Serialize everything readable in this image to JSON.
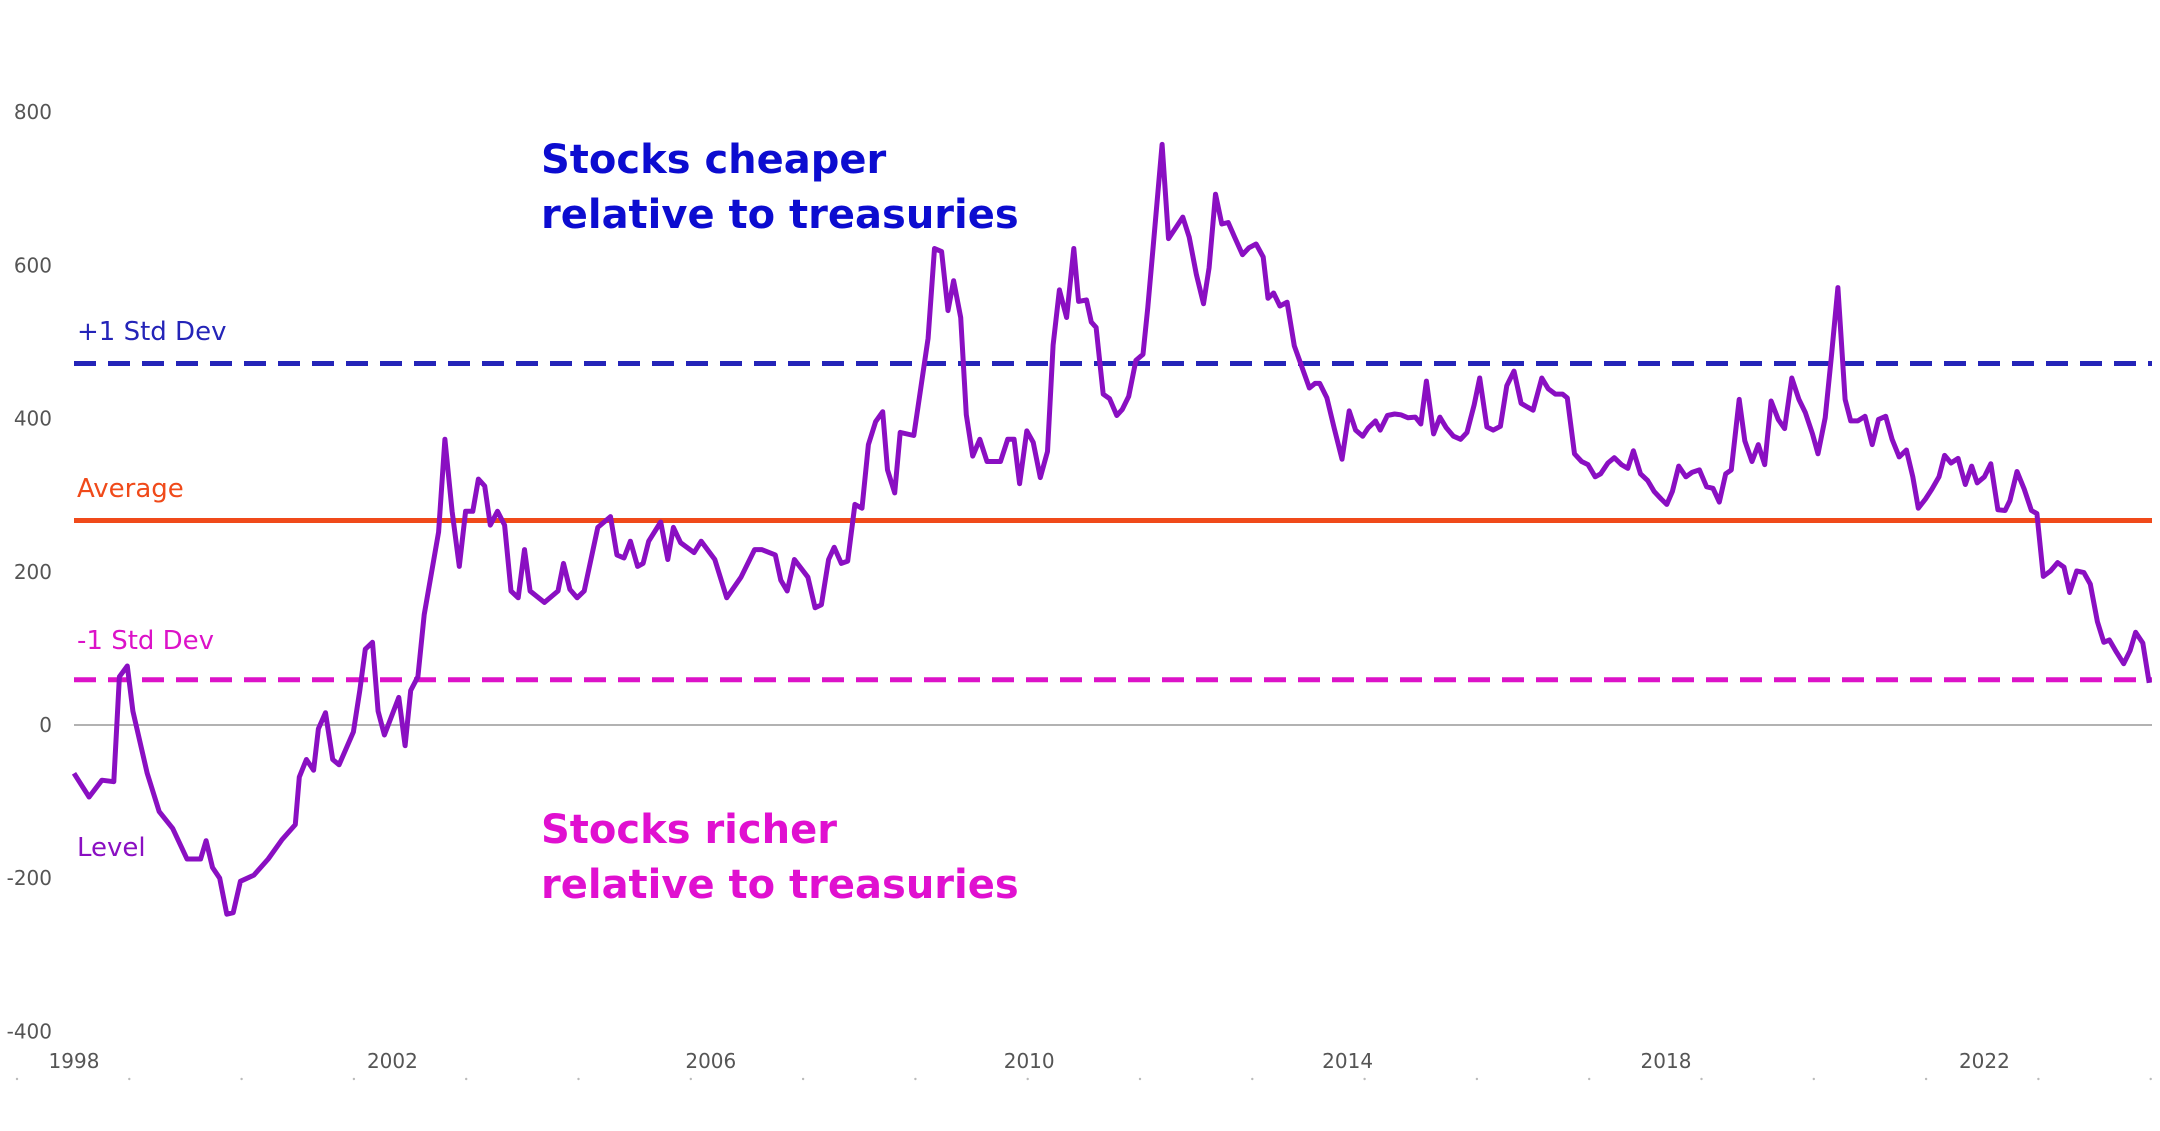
{
  "chart_data": {
    "type": "line",
    "title": "",
    "xlabel": "",
    "ylabel": "",
    "xlim": [
      1998,
      2024.1
    ],
    "ylim": [
      -400,
      800
    ],
    "grid": false,
    "y_ticks": [
      "800",
      "600",
      "400",
      "200",
      "0",
      "-200",
      "-400"
    ],
    "y_tick_values": [
      800,
      600,
      400,
      200,
      0,
      -200,
      -400
    ],
    "x_ticks": [
      "1998",
      "2002",
      "2006",
      "2010",
      "2014",
      "2018",
      "2022"
    ],
    "x_tick_values": [
      1998,
      2002,
      2006,
      2010,
      2014,
      2018,
      2022
    ],
    "reference_lines": [
      {
        "name": "+1 Std Dev",
        "value": 472,
        "style": "dashed",
        "color": "#2424b8"
      },
      {
        "name": "Average",
        "value": 267,
        "style": "solid",
        "color": "#f04a1a"
      },
      {
        "name": "-1 Std Dev",
        "value": 59,
        "style": "dashed",
        "color": "#dc12c8"
      }
    ],
    "annotations": {
      "cheaper": [
        "Stocks cheaper",
        "relative to treasuries"
      ],
      "richer": [
        "Stocks richer",
        "relative to treasuries"
      ],
      "cheaper_color": "#0c0cd0",
      "richer_color": "#e010d0"
    },
    "series": [
      {
        "name": "Level",
        "color": "#8a0fc2",
        "x": [
          1998.0,
          1998.19,
          1998.35,
          1998.5,
          1998.57,
          1998.67,
          1998.74,
          1998.92,
          1999.07,
          1999.24,
          1999.42,
          1999.59,
          1999.66,
          1999.74,
          1999.83,
          1999.92,
          2000.0,
          2000.09,
          2000.26,
          2000.44,
          2000.61,
          2000.78,
          2000.83,
          2000.92,
          2001.01,
          2001.07,
          2001.16,
          2001.25,
          2001.33,
          2001.51,
          2001.59,
          2001.66,
          2001.75,
          2001.82,
          2001.9,
          2002.08,
          2002.16,
          2002.23,
          2002.32,
          2002.4,
          2002.58,
          2002.66,
          2002.75,
          2002.84,
          2002.92,
          2003.01,
          2003.08,
          2003.16,
          2003.23,
          2003.32,
          2003.41,
          2003.49,
          2003.58,
          2003.66,
          2003.73,
          2003.91,
          2004.08,
          2004.15,
          2004.23,
          2004.32,
          2004.41,
          2004.58,
          2004.74,
          2004.82,
          2004.91,
          2004.99,
          2005.08,
          2005.15,
          2005.22,
          2005.37,
          2005.46,
          2005.53,
          2005.62,
          2005.79,
          2005.88,
          2006.05,
          2006.2,
          2006.38,
          2006.55,
          2006.64,
          2006.81,
          2006.88,
          2006.96,
          2007.05,
          2007.22,
          2007.31,
          2007.39,
          2007.48,
          2007.55,
          2007.64,
          2007.72,
          2007.81,
          2007.9,
          2007.98,
          2008.07,
          2008.16,
          2008.22,
          2008.31,
          2008.38,
          2008.55,
          2008.64,
          2008.73,
          2008.81,
          2008.9,
          2008.98,
          2009.05,
          2009.14,
          2009.21,
          2009.29,
          2009.38,
          2009.47,
          2009.64,
          2009.73,
          2009.81,
          2009.88,
          2009.97,
          2010.05,
          2010.14,
          2010.23,
          2010.3,
          2010.38,
          2010.47,
          2010.56,
          2010.62,
          2010.72,
          2010.78,
          2010.84,
          2010.93,
          2011.01,
          2011.1,
          2011.17,
          2011.25,
          2011.34,
          2011.43,
          2011.49,
          2011.55,
          2011.67,
          2011.75,
          2011.84,
          2011.93,
          2012.01,
          2012.1,
          2012.19,
          2012.26,
          2012.34,
          2012.42,
          2012.5,
          2012.58,
          2012.68,
          2012.76,
          2012.85,
          2012.94,
          2013.0,
          2013.07,
          2013.15,
          2013.24,
          2013.33,
          2013.41,
          2013.52,
          2013.59,
          2013.65,
          2013.74,
          2013.83,
          2013.93,
          2014.02,
          2014.1,
          2014.19,
          2014.26,
          2014.35,
          2014.41,
          2014.5,
          2014.59,
          2014.67,
          2014.76,
          2014.85,
          2014.92,
          2014.99,
          2015.08,
          2015.16,
          2015.24,
          2015.33,
          2015.42,
          2015.5,
          2015.59,
          2015.66,
          2015.75,
          2015.83,
          2015.92,
          2016.0,
          2016.09,
          2016.18,
          2016.26,
          2016.33,
          2016.44,
          2016.52,
          2016.61,
          2016.7,
          2016.76,
          2016.85,
          2016.94,
          2017.02,
          2017.11,
          2017.18,
          2017.27,
          2017.35,
          2017.44,
          2017.52,
          2017.59,
          2017.68,
          2017.77,
          2017.85,
          2017.94,
          2018.01,
          2018.08,
          2018.16,
          2018.25,
          2018.33,
          2018.42,
          2018.51,
          2018.59,
          2018.67,
          2018.75,
          2018.82,
          2018.92,
          2018.99,
          2019.08,
          2019.16,
          2019.24,
          2019.32,
          2019.41,
          2019.49,
          2019.58,
          2019.67,
          2019.75,
          2019.84,
          2019.91,
          2020.0,
          2020.08,
          2020.16,
          2020.25,
          2020.32,
          2020.41,
          2020.5,
          2020.59,
          2020.67,
          2020.76,
          2020.84,
          2020.93,
          2021.02,
          2021.1,
          2021.17,
          2021.26,
          2021.34,
          2021.43,
          2021.5,
          2021.58,
          2021.67,
          2021.76,
          2021.84,
          2021.91,
          2022.0,
          2022.08,
          2022.17,
          2022.26,
          2022.32,
          2022.41,
          2022.5,
          2022.59,
          2022.66,
          2022.74,
          2022.83,
          2022.92,
          2023.0,
          2023.07,
          2023.16,
          2023.25,
          2023.33,
          2023.42,
          2023.5,
          2023.57,
          2023.66,
          2023.75,
          2023.83,
          2023.9,
          2023.99,
          2024.07
        ],
        "y": [
          -63,
          -94,
          -72,
          -74,
          63,
          77,
          18,
          -63,
          -113,
          -135,
          -175,
          -175,
          -151,
          -186,
          -200,
          -247,
          -245,
          -204,
          -196,
          -175,
          -150,
          -130,
          -68,
          -45,
          -59,
          -5,
          16,
          -45,
          -52,
          -9,
          45,
          99,
          108,
          18,
          -13,
          36,
          -27,
          45,
          63,
          144,
          252,
          373,
          279,
          207,
          279,
          279,
          321,
          312,
          261,
          279,
          261,
          175,
          166,
          229,
          175,
          160,
          175,
          211,
          177,
          166,
          175,
          258,
          272,
          222,
          218,
          240,
          207,
          211,
          240,
          265,
          216,
          258,
          238,
          225,
          240,
          216,
          166,
          193,
          229,
          229,
          222,
          189,
          175,
          216,
          193,
          153,
          157,
          216,
          232,
          211,
          214,
          288,
          283,
          366,
          396,
          409,
          333,
          303,
          382,
          378,
          441,
          505,
          622,
          618,
          541,
          580,
          532,
          405,
          351,
          373,
          344,
          344,
          373,
          373,
          315,
          384,
          369,
          323,
          357,
          496,
          568,
          532,
          622,
          553,
          555,
          526,
          519,
          432,
          426,
          404,
          412,
          429,
          476,
          484,
          545,
          616,
          758,
          635,
          649,
          663,
          637,
          588,
          550,
          597,
          693,
          654,
          656,
          637,
          614,
          623,
          628,
          611,
          557,
          564,
          547,
          552,
          495,
          472,
          440,
          446,
          446,
          427,
          388,
          347,
          410,
          385,
          377,
          388,
          397,
          385,
          404,
          406,
          405,
          401,
          402,
          393,
          449,
          380,
          402,
          388,
          377,
          373,
          382,
          418,
          453,
          389,
          385,
          390,
          443,
          462,
          420,
          415,
          411,
          453,
          439,
          432,
          432,
          427,
          354,
          344,
          340,
          324,
          328,
          342,
          349,
          340,
          335,
          358,
          328,
          319,
          305,
          295,
          288,
          305,
          338,
          324,
          330,
          333,
          311,
          309,
          291,
          328,
          333,
          425,
          371,
          344,
          366,
          340,
          423,
          399,
          387,
          453,
          425,
          408,
          380,
          354,
          401,
          484,
          571,
          425,
          397,
          397,
          403,
          366,
          399,
          403,
          373,
          350,
          359,
          324,
          283,
          295,
          308,
          324,
          352,
          342,
          348,
          314,
          338,
          316,
          324,
          341,
          281,
          280,
          293,
          331,
          308,
          280,
          276,
          194,
          201,
          212,
          206,
          173,
          201,
          199,
          184,
          135,
          108,
          111,
          95,
          80,
          97,
          121,
          107,
          55
        ]
      }
    ],
    "axis_color": "#999999"
  }
}
